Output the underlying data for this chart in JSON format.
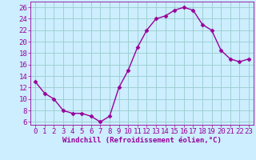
{
  "x": [
    0,
    1,
    2,
    3,
    4,
    5,
    6,
    7,
    8,
    9,
    10,
    11,
    12,
    13,
    14,
    15,
    16,
    17,
    18,
    19,
    20,
    21,
    22,
    23
  ],
  "y": [
    13,
    11,
    10,
    8,
    7.5,
    7.5,
    7,
    6,
    7,
    12,
    15,
    19,
    22,
    24,
    24.5,
    25.5,
    26,
    25.5,
    23,
    22,
    18.5,
    17,
    16.5,
    17
  ],
  "line_color": "#990099",
  "marker_color": "#990099",
  "bg_color": "#cceeff",
  "grid_color": "#99cccc",
  "xlabel": "Windchill (Refroidissement éolien,°C)",
  "xlim": [
    -0.5,
    23.5
  ],
  "ylim": [
    5.5,
    27
  ],
  "yticks": [
    6,
    8,
    10,
    12,
    14,
    16,
    18,
    20,
    22,
    24,
    26
  ],
  "xticks": [
    0,
    1,
    2,
    3,
    4,
    5,
    6,
    7,
    8,
    9,
    10,
    11,
    12,
    13,
    14,
    15,
    16,
    17,
    18,
    19,
    20,
    21,
    22,
    23
  ],
  "xlabel_color": "#990099",
  "tick_color": "#990099",
  "font_size_xlabel": 6.5,
  "font_size_ticks": 6.5,
  "line_width": 1.0,
  "marker_size": 2.5
}
